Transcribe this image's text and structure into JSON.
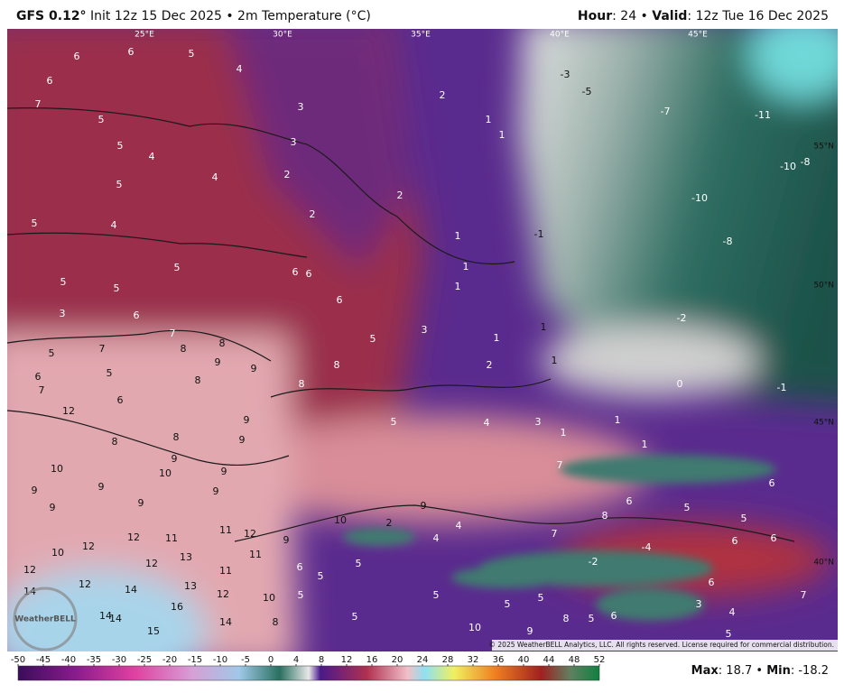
{
  "header": {
    "model": "GFS 0.12°",
    "info": "Init 12z 15 Dec 2025 • 2m Temperature (°C)",
    "hour_label": "Hour",
    "hour_value": ": 24 •",
    "valid_label": "Valid",
    "valid_value": ": 12z Tue 16 Dec 2025"
  },
  "map": {
    "lon_labels": [
      "25°E",
      "30°E",
      "35°E",
      "40°E",
      "45°E"
    ],
    "lat_labels": [
      "55°N",
      "50°N",
      "45°N",
      "40°N"
    ],
    "temperature_labels": [
      6,
      6,
      5,
      4,
      6,
      7,
      5,
      3,
      2,
      1,
      1,
      -3,
      -5,
      -7,
      -11,
      5,
      4,
      3,
      5,
      4,
      2,
      2,
      -10,
      -8,
      -10,
      5,
      4,
      2,
      1,
      -1,
      -8,
      5,
      6,
      6,
      1,
      1,
      5,
      5,
      6,
      -2,
      3,
      6,
      7,
      3,
      5,
      1,
      1,
      5,
      7,
      8,
      8,
      9,
      5,
      9,
      8,
      8,
      2,
      1,
      6,
      7,
      8,
      0,
      -1,
      6,
      12,
      9,
      5,
      4,
      3,
      1,
      8,
      8,
      9,
      1,
      1,
      10,
      10,
      9,
      9,
      7,
      9,
      9,
      9,
      9,
      6,
      9,
      9,
      10,
      2,
      4,
      6,
      5,
      8,
      5,
      11,
      12,
      9,
      12,
      12,
      11,
      4,
      7,
      6,
      6,
      10,
      11,
      5,
      13,
      12,
      -4,
      -2,
      12,
      6,
      5,
      11,
      14,
      12,
      14,
      13,
      12,
      10,
      5,
      5,
      5,
      5,
      6,
      7,
      3,
      14,
      14,
      16,
      15,
      14,
      8,
      5,
      10,
      9,
      8,
      5,
      6,
      4,
      5
    ],
    "copyright": "© 2025 WeatherBELL Analytics, LLC. All rights reserved. License required for commercial distribution.",
    "logo": "WeatherBELL"
  },
  "colorbar": {
    "ticks": [
      -50,
      -45,
      -40,
      -35,
      -30,
      -25,
      -20,
      -15,
      -10,
      -5,
      0,
      4,
      8,
      12,
      16,
      20,
      24,
      28,
      32,
      36,
      40,
      44,
      48,
      52
    ]
  },
  "footer": {
    "max_label": "Max",
    "max_value": ": 18.7 •",
    "min_label": "Min",
    "min_value": ": -18.2"
  }
}
